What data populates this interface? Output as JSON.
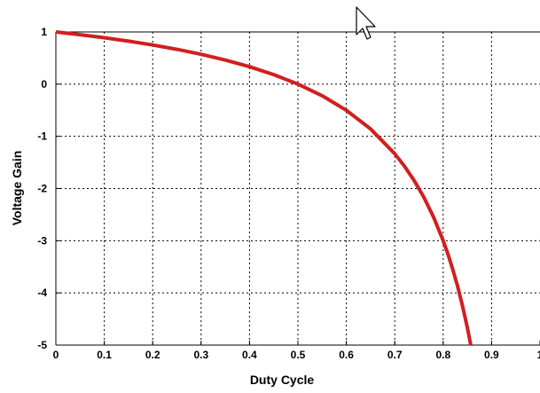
{
  "chart_data": {
    "type": "line",
    "title": "",
    "xlabel": "Duty Cycle",
    "ylabel": "Voltage Gain",
    "xlim": [
      0,
      1
    ],
    "ylim": [
      -5,
      1
    ],
    "xticks": [
      0,
      0.1,
      0.2,
      0.3,
      0.4,
      0.5,
      0.6,
      0.7,
      0.8,
      0.9,
      1
    ],
    "xtick_labels": [
      "0",
      "0.1",
      "0.2",
      "0.3",
      "0.4",
      "0.5",
      "0.6",
      "0.7",
      "0.8",
      "0.9",
      "1"
    ],
    "yticks": [
      1,
      0,
      -1,
      -2,
      -3,
      -4,
      -5
    ],
    "ytick_labels": [
      "1",
      "0",
      "-1",
      "-2",
      "-3",
      "-4",
      "-5"
    ],
    "grid": true,
    "grid_style": "dotted",
    "legend": "none",
    "series": [
      {
        "color": "#d11f1f",
        "x": [
          0,
          0.05,
          0.1,
          0.15,
          0.2,
          0.25,
          0.3,
          0.35,
          0.4,
          0.45,
          0.5,
          0.55,
          0.6,
          0.65,
          0.7,
          0.72,
          0.74,
          0.76,
          0.78,
          0.8,
          0.81,
          0.82,
          0.83,
          0.84,
          0.85,
          0.857
        ],
        "y": [
          1,
          0.947,
          0.889,
          0.824,
          0.75,
          0.667,
          0.571,
          0.462,
          0.333,
          0.182,
          0,
          -0.222,
          -0.5,
          -0.857,
          -1.333,
          -1.571,
          -1.846,
          -2.167,
          -2.545,
          -3,
          -3.263,
          -3.556,
          -3.882,
          -4.25,
          -4.667,
          -5
        ]
      }
    ]
  },
  "cursor": {
    "icon": "mouse-pointer-icon"
  }
}
